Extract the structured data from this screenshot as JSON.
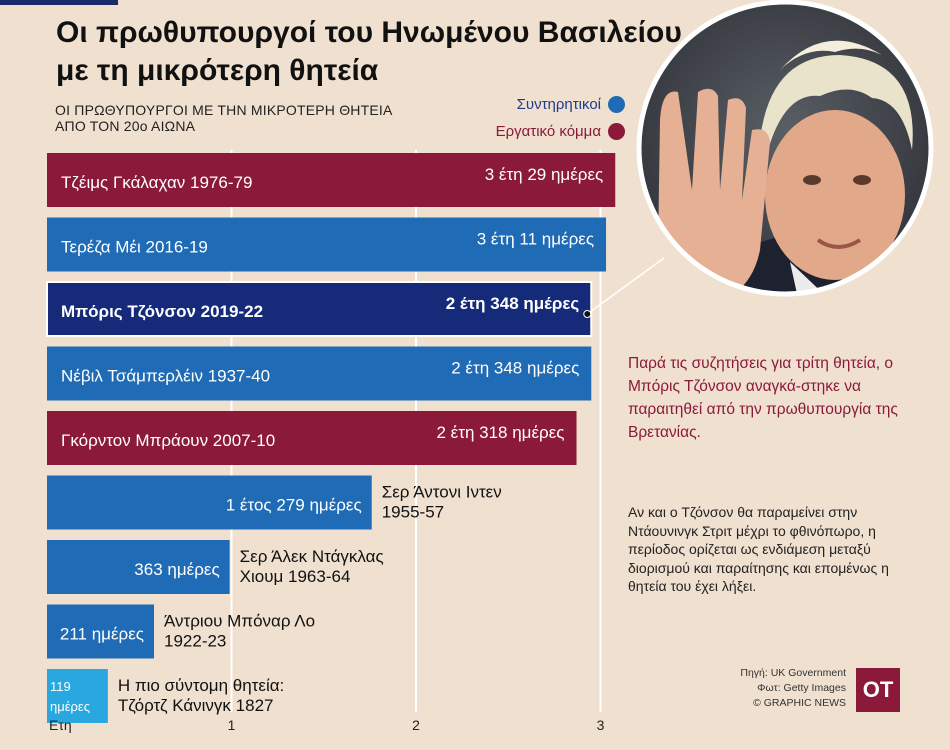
{
  "header": {
    "title": "Οι πρωθυπουργοί του Ηνωμένου Βασιλείου με τη μικρότερη θητεία",
    "subtitle_line1": "ΟΙ ΠΡΩΘΥΠΟΥΡΓΟΙ ΜΕ ΤΗΝ ΜΙΚΡΟΤΕΡΗ ΘΗΤΕΙΑ",
    "subtitle_line2": "ΑΠΟ ΤΟΝ 20ο ΑΙΩΝΑ"
  },
  "legend": {
    "conservative": "Συντηρητικοί",
    "labour": "Εργατικό κόμμα"
  },
  "colors": {
    "conservative": "#1f6bb5",
    "labour": "#8b1a3a",
    "highlight": "#152a78",
    "light": "#29a8e0",
    "background": "#f0e0cf"
  },
  "chart_data": {
    "type": "bar",
    "orientation": "horizontal",
    "x_axis_label": "Ετη",
    "x_ticks": [
      "1",
      "2",
      "3"
    ],
    "xlim": [
      0,
      3
    ],
    "bars": [
      {
        "name": "Τζέιμς Γκάλαχαν 1976-79",
        "duration": "3 έτη 29 ημέρες",
        "value_years": 3.08,
        "party": "labour",
        "highlight": false
      },
      {
        "name": "Τερέζα Μέι 2016-19",
        "duration": "3 έτη 11 ημέρες",
        "value_years": 3.03,
        "party": "conservative",
        "highlight": false
      },
      {
        "name": "Μπόρις Τζόνσον 2019-22",
        "duration": "2 έτη 348 ημέρες",
        "value_years": 2.95,
        "party": "conservative",
        "highlight": true
      },
      {
        "name": "Νέβιλ Τσάμπερλέιν 1937-40",
        "duration": "2 έτη 348 ημέρες",
        "value_years": 2.95,
        "party": "conservative",
        "highlight": false
      },
      {
        "name": "Γκόρντον Μπράουν  2007-10",
        "duration": "2 έτη 318 ημέρες",
        "value_years": 2.87,
        "party": "labour",
        "highlight": false
      },
      {
        "name_line1": "Σερ Άντονι Ιντεν",
        "name_line2": "1955-57",
        "duration": "1 έτος 279 ημέρες",
        "value_years": 1.76,
        "party": "conservative",
        "highlight": false
      },
      {
        "name_line1": "Σερ Άλεκ Ντάγκλας",
        "name_line2": "Χιουμ 1963-64",
        "duration": "363 ημέρες",
        "value_years": 0.99,
        "party": "conservative",
        "highlight": false
      },
      {
        "name_line1": "Άντριου Μπόναρ Λο",
        "name_line2": "1922-23",
        "duration": "211 ημέρες",
        "value_years": 0.58,
        "party": "conservative",
        "highlight": false
      },
      {
        "name_line1": "Η πιο σύντομη θητεία:",
        "name_line2": "Τζόρτζ Κάνινγκ 1827",
        "duration_line1": "119",
        "duration_line2": "ημέρες",
        "value_years": 0.33,
        "party": "light",
        "highlight": false
      }
    ]
  },
  "callout": "Παρά τις συζητήσεις για τρίτη θητεία, ο Μπόρις Τζόνσον αναγκά-στηκε να παραιτηθεί από την πρωθυπουργία της Βρετανίας.",
  "note": "Αν και ο Τζόνσον θα παραμείνει στην Ντάουνινγκ Στριτ μέχρι το φθινόπωρο, η περίοδος ορίζεται ως ενδιάμεση μεταξύ διορισμού και παραίτησης και επομένως η θητεία του έχει λήξει.",
  "credits": {
    "source": "Πηγή: UK Government",
    "photo": "Φωτ: Getty Images",
    "agency": "© GRAPHIC NEWS"
  },
  "logo": "OT"
}
